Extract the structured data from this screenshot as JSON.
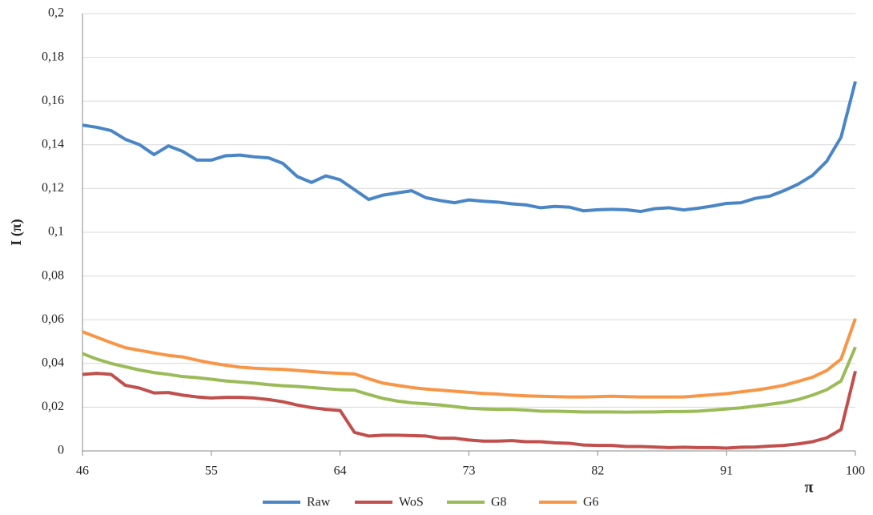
{
  "chart_data": {
    "type": "line",
    "xlabel": "π",
    "ylabel": "I (π)",
    "x": [
      46,
      47,
      48,
      49,
      50,
      51,
      52,
      53,
      54,
      55,
      56,
      57,
      58,
      59,
      60,
      61,
      62,
      63,
      64,
      65,
      66,
      67,
      68,
      69,
      70,
      71,
      72,
      73,
      74,
      75,
      76,
      77,
      78,
      79,
      80,
      81,
      82,
      83,
      84,
      85,
      86,
      87,
      88,
      89,
      90,
      91,
      92,
      93,
      94,
      95,
      96,
      97,
      98,
      99,
      100
    ],
    "xlim": [
      46,
      100
    ],
    "xticks": [
      46,
      55,
      64,
      73,
      82,
      91,
      100
    ],
    "ylim": [
      0,
      0.2
    ],
    "yticks": [
      0,
      {
        "value": 0.02,
        "label": "0,02"
      },
      {
        "value": 0.04,
        "label": "0,04"
      },
      {
        "value": 0.06,
        "label": "0,06"
      },
      {
        "value": 0.08,
        "label": "0,08"
      },
      {
        "value": 0.1,
        "label": "0,1"
      },
      {
        "value": 0.12,
        "label": "0,12"
      },
      {
        "value": 0.14,
        "label": "0,14"
      },
      {
        "value": 0.16,
        "label": "0,16"
      },
      {
        "value": 0.18,
        "label": "0,18"
      },
      {
        "value": 0.2,
        "label": "0,2"
      }
    ],
    "grid": true,
    "legend": "bottom",
    "series": [
      {
        "name": "Raw",
        "color": "#4a86c5",
        "values": [
          0.149,
          0.148,
          0.1465,
          0.1425,
          0.14,
          0.1355,
          0.1395,
          0.137,
          0.133,
          0.133,
          0.135,
          0.1353,
          0.1345,
          0.134,
          0.1315,
          0.1255,
          0.1228,
          0.1258,
          0.124,
          0.1195,
          0.115,
          0.117,
          0.118,
          0.119,
          0.1158,
          0.1145,
          0.1135,
          0.1148,
          0.1142,
          0.1138,
          0.113,
          0.1125,
          0.1112,
          0.1118,
          0.1115,
          0.1098,
          0.1103,
          0.1105,
          0.1103,
          0.1095,
          0.1108,
          0.1112,
          0.1102,
          0.111,
          0.112,
          0.1132,
          0.1135,
          0.1155,
          0.1165,
          0.119,
          0.122,
          0.126,
          0.1325,
          0.1435,
          0.169
        ]
      },
      {
        "name": "WoS",
        "color": "#c0504d",
        "values": [
          0.035,
          0.0355,
          0.035,
          0.03,
          0.0287,
          0.0265,
          0.0267,
          0.0255,
          0.0247,
          0.0242,
          0.0245,
          0.0245,
          0.0242,
          0.0235,
          0.0225,
          0.021,
          0.0198,
          0.019,
          0.0185,
          0.0085,
          0.0068,
          0.0072,
          0.0072,
          0.007,
          0.0068,
          0.0058,
          0.0058,
          0.005,
          0.0045,
          0.0045,
          0.0047,
          0.0042,
          0.0042,
          0.0037,
          0.0035,
          0.0027,
          0.0025,
          0.0025,
          0.002,
          0.002,
          0.0018,
          0.0015,
          0.0017,
          0.0015,
          0.0015,
          0.0013,
          0.0017,
          0.0018,
          0.0022,
          0.0025,
          0.0032,
          0.0042,
          0.006,
          0.0098,
          0.0365
        ]
      },
      {
        "name": "G8",
        "color": "#9bbb59",
        "values": [
          0.0445,
          0.042,
          0.04,
          0.0385,
          0.037,
          0.0358,
          0.035,
          0.034,
          0.0335,
          0.0328,
          0.032,
          0.0315,
          0.031,
          0.0303,
          0.0298,
          0.0295,
          0.029,
          0.0285,
          0.028,
          0.0278,
          0.0258,
          0.024,
          0.0228,
          0.022,
          0.0215,
          0.021,
          0.0203,
          0.0195,
          0.0192,
          0.019,
          0.019,
          0.0187,
          0.0182,
          0.0182,
          0.018,
          0.0178,
          0.0178,
          0.0178,
          0.0177,
          0.0178,
          0.0178,
          0.018,
          0.018,
          0.0182,
          0.0187,
          0.0192,
          0.0197,
          0.0205,
          0.0213,
          0.0222,
          0.0235,
          0.0255,
          0.028,
          0.032,
          0.0475
        ]
      },
      {
        "name": "G6",
        "color": "#f79646",
        "values": [
          0.0545,
          0.052,
          0.0495,
          0.0472,
          0.046,
          0.0448,
          0.0437,
          0.043,
          0.0415,
          0.0402,
          0.0392,
          0.0383,
          0.0378,
          0.0375,
          0.0373,
          0.0368,
          0.0363,
          0.0358,
          0.0355,
          0.0352,
          0.033,
          0.031,
          0.03,
          0.029,
          0.0283,
          0.0278,
          0.0273,
          0.0268,
          0.0263,
          0.026,
          0.0255,
          0.0252,
          0.025,
          0.0248,
          0.0247,
          0.0247,
          0.0248,
          0.025,
          0.0248,
          0.0247,
          0.0247,
          0.0247,
          0.0247,
          0.0252,
          0.0257,
          0.0262,
          0.027,
          0.0278,
          0.0288,
          0.03,
          0.0318,
          0.0337,
          0.0368,
          0.042,
          0.0605
        ]
      }
    ]
  }
}
